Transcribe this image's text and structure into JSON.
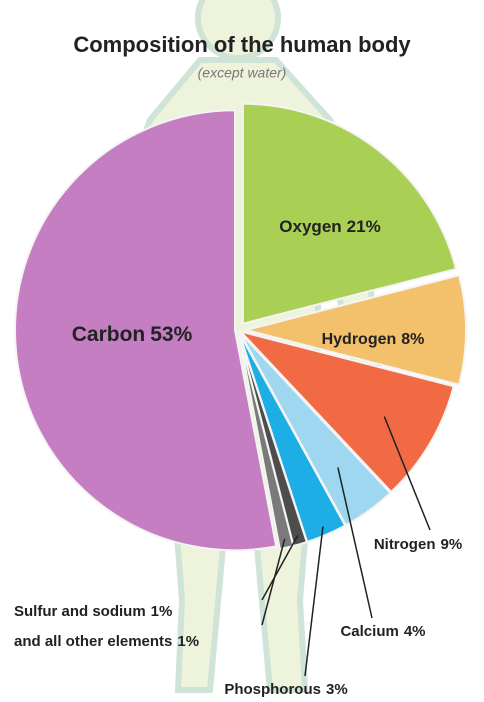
{
  "chart_data": {
    "type": "pie",
    "title": "Composition of the human body",
    "subtitle": "(except water)",
    "categories": [
      "Oxygen",
      "Hydrogen",
      "Nitrogen",
      "Calcium",
      "Phosphorous",
      "Sulfur and sodium",
      "and all other elements",
      "Carbon"
    ],
    "values": [
      21,
      8,
      9,
      4,
      3,
      1,
      1,
      53
    ],
    "value_labels": [
      "21%",
      "8%",
      "9%",
      "4%",
      "3%",
      "1%",
      "1%",
      "53%"
    ],
    "colors": [
      "#a9cf54",
      "#f3c06b",
      "#f26a43",
      "#9fd7f1",
      "#1eaee6",
      "#4d4d4d",
      "#7a7a7a",
      "#c57ec2"
    ]
  }
}
